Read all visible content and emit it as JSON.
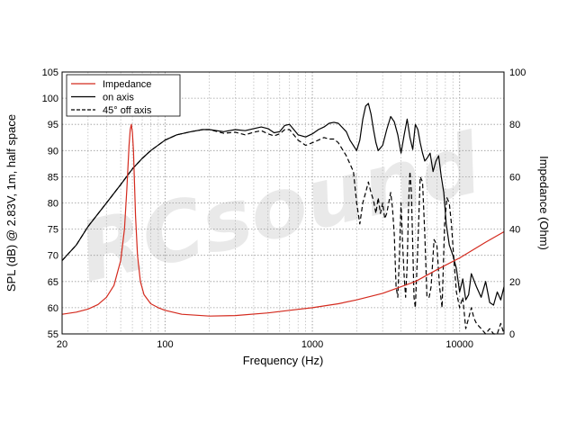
{
  "watermark": "RCsound",
  "chart_data": {
    "type": "line",
    "title": "",
    "xlabel": "Frequency (Hz)",
    "ylabel": "SPL (dB) @ 2.83V, 1m, half space",
    "y2label": "Impedance (Ohm)",
    "xscale": "log",
    "xlim": [
      20,
      20000
    ],
    "ylim": [
      55,
      105
    ],
    "y2lim": [
      0,
      100
    ],
    "xticks": [
      {
        "value": 20,
        "label": "20"
      },
      {
        "value": 100,
        "label": "100"
      },
      {
        "value": 1000,
        "label": "1000"
      },
      {
        "value": 10000,
        "label": "10000"
      }
    ],
    "yticks": [
      55,
      60,
      65,
      70,
      75,
      80,
      85,
      90,
      95,
      100,
      105
    ],
    "y2ticks": [
      0,
      20,
      40,
      60,
      80,
      100
    ],
    "grid": true,
    "legend": "top-left",
    "series": [
      {
        "name": "Impedance",
        "axis": "right",
        "color": "#d42a1e",
        "style": "solid",
        "x": [
          20,
          25,
          30,
          35,
          40,
          45,
          50,
          53,
          55,
          57,
          58,
          59,
          60,
          61,
          62,
          63,
          65,
          68,
          72,
          80,
          90,
          100,
          130,
          200,
          300,
          500,
          700,
          1000,
          1500,
          2000,
          3000,
          5000,
          7000,
          10000,
          15000,
          20000
        ],
        "values": [
          7.5,
          8.3,
          9.5,
          11.2,
          14,
          18.5,
          28,
          40,
          55,
          72,
          78,
          80,
          77,
          70,
          58,
          45,
          30,
          20,
          15,
          11.5,
          10,
          9,
          7.5,
          6.8,
          7,
          8,
          9,
          10,
          11.5,
          13,
          15.5,
          20,
          24.5,
          29,
          35,
          39
        ]
      },
      {
        "name": "on axis",
        "axis": "left",
        "color": "#000000",
        "style": "solid",
        "x": [
          20,
          25,
          30,
          40,
          50,
          60,
          70,
          80,
          100,
          120,
          150,
          180,
          200,
          250,
          300,
          350,
          400,
          450,
          500,
          550,
          600,
          650,
          700,
          800,
          900,
          1000,
          1100,
          1200,
          1300,
          1400,
          1500,
          1700,
          1800,
          2000,
          2100,
          2200,
          2300,
          2400,
          2500,
          2600,
          2700,
          2800,
          3000,
          3200,
          3400,
          3600,
          3800,
          4000,
          4200,
          4400,
          4600,
          4800,
          5000,
          5200,
          5400,
          5600,
          5800,
          6000,
          6300,
          6600,
          6900,
          7200,
          7500,
          7800,
          8100,
          8500,
          9000,
          9500,
          10000,
          10500,
          11000,
          11500,
          12000,
          13000,
          14000,
          15000,
          16000,
          17000,
          18000,
          19000,
          20000
        ],
        "values": [
          69,
          72,
          75.5,
          80,
          83.5,
          86.5,
          88.5,
          90,
          92,
          93,
          93.6,
          94,
          94,
          93.6,
          94,
          93.8,
          94.2,
          94.5,
          94.2,
          93.4,
          93.6,
          94.8,
          95,
          93,
          92.6,
          93.2,
          94,
          94.5,
          95.2,
          95.4,
          95.2,
          93.6,
          92,
          90,
          92,
          96,
          98.5,
          99,
          97,
          94,
          91.5,
          90,
          91,
          94,
          96.5,
          95.5,
          93,
          89.5,
          93,
          96,
          92.5,
          90.2,
          95,
          94,
          91.5,
          89.5,
          88,
          88.5,
          89.5,
          86,
          88,
          89,
          85,
          82,
          76,
          72,
          70,
          67.5,
          63,
          65.5,
          61.5,
          62.5,
          66.5,
          64,
          62,
          65,
          61,
          60.5,
          63,
          61.5,
          64
        ]
      },
      {
        "name": "45° off axis",
        "axis": "left",
        "color": "#000000",
        "style": "dashed",
        "x": [
          20,
          25,
          30,
          40,
          50,
          60,
          70,
          80,
          100,
          120,
          150,
          180,
          200,
          250,
          300,
          350,
          400,
          450,
          500,
          550,
          600,
          650,
          700,
          800,
          900,
          1000,
          1100,
          1200,
          1300,
          1400,
          1500,
          1700,
          1900,
          2000,
          2100,
          2200,
          2300,
          2400,
          2500,
          2600,
          2700,
          2800,
          2900,
          3000,
          3100,
          3200,
          3300,
          3400,
          3500,
          3600,
          3700,
          3800,
          3900,
          4000,
          4100,
          4200,
          4300,
          4400,
          4500,
          4600,
          4700,
          4800,
          4900,
          5000,
          5200,
          5400,
          5600,
          5800,
          6000,
          6200,
          6400,
          6700,
          7000,
          7300,
          7600,
          7900,
          8200,
          8500,
          8800,
          9100,
          9500,
          10000,
          10500,
          11000,
          11500,
          12000,
          12500,
          13000,
          14000,
          15000,
          16000,
          17000,
          18000,
          19000,
          20000
        ],
        "values": [
          69,
          72,
          75.5,
          80,
          83.5,
          86.5,
          88.5,
          90,
          92,
          93,
          93.6,
          94,
          94,
          93.3,
          93.5,
          93,
          93.5,
          93.8,
          93.2,
          92.8,
          93.2,
          94,
          94,
          92,
          91,
          91.5,
          92,
          92.5,
          92.2,
          92.2,
          91.5,
          89,
          86,
          80,
          76,
          80,
          82,
          84,
          82,
          80.5,
          78,
          81,
          78,
          80,
          77,
          78,
          80,
          82,
          79,
          74,
          64,
          62,
          70,
          80,
          72,
          66,
          62,
          68,
          80,
          86,
          82,
          72,
          62,
          60,
          72,
          85,
          84,
          74,
          62,
          62,
          64,
          73,
          72,
          64,
          60,
          76,
          81,
          80,
          76,
          70,
          63,
          60,
          62,
          56,
          58,
          60,
          58,
          57,
          56,
          55,
          56,
          55,
          55,
          57,
          55
        ]
      }
    ]
  }
}
